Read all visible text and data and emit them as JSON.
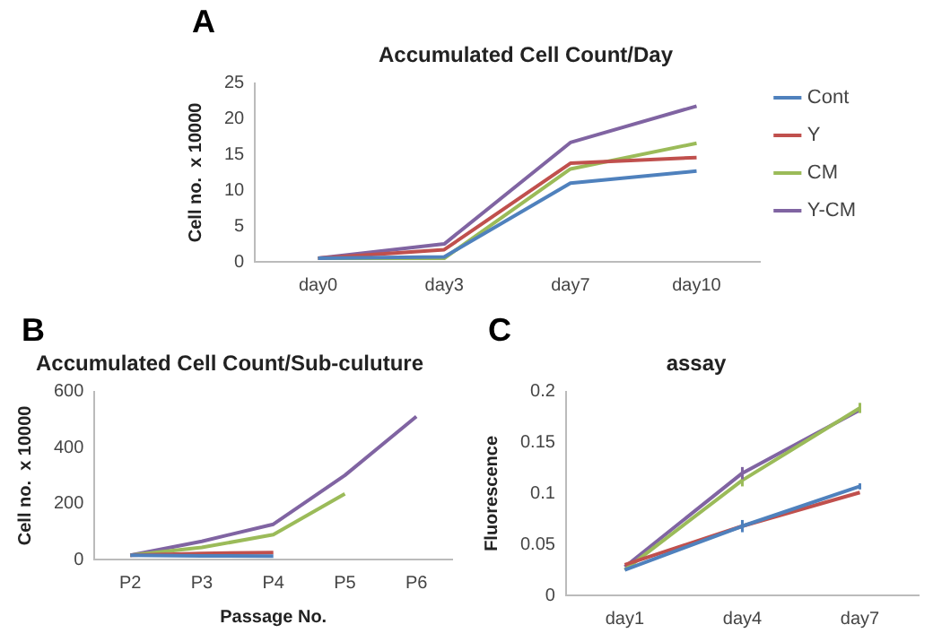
{
  "chart_data": [
    {
      "type": "line",
      "title": "Accumulated Cell Count/Day",
      "ylabel": "Cell no.  x 10000",
      "annotations": [
        "A"
      ],
      "categories": [
        "day0",
        "day3",
        "day7",
        "day10"
      ],
      "ylim": [
        0,
        25
      ],
      "yticks": [
        0,
        5,
        10,
        15,
        20,
        25
      ],
      "grid": false,
      "legend": "right",
      "marker": "none",
      "series": [
        {
          "name": "Cont",
          "color": "#4f81bd",
          "values": [
            0.5,
            0.7,
            11,
            12.7
          ]
        },
        {
          "name": "Y",
          "color": "#c0504d",
          "values": [
            0.5,
            1.7,
            13.8,
            14.6
          ]
        },
        {
          "name": "CM",
          "color": "#9bbb59",
          "values": [
            0.5,
            0.5,
            13,
            16.6
          ]
        },
        {
          "name": "Y-CM",
          "color": "#8064a2",
          "values": [
            0.5,
            2.5,
            16.7,
            21.8
          ]
        }
      ]
    },
    {
      "type": "line",
      "title": "Accumulated Cell Count/Sub-culuture",
      "xlabel": "Passage No.",
      "ylabel": "Cell no.  x 10000",
      "annotations": [
        "B"
      ],
      "categories": [
        "P2",
        "P3",
        "P4",
        "P5",
        "P6"
      ],
      "ylim": [
        0,
        600
      ],
      "yticks": [
        0,
        200,
        400,
        600
      ],
      "grid": false,
      "marker": "none",
      "series": [
        {
          "color": "#4f81bd",
          "values": [
            15,
            13,
            12,
            null,
            null
          ]
        },
        {
          "color": "#c0504d",
          "values": [
            15,
            22,
            25,
            null,
            null
          ]
        },
        {
          "color": "#9bbb59",
          "values": [
            15,
            43,
            89,
            235,
            null
          ]
        },
        {
          "color": "#8064a2",
          "values": [
            15,
            65,
            126,
            301,
            511
          ]
        }
      ]
    },
    {
      "type": "line",
      "title": "assay",
      "ylabel": "Fluorescence",
      "annotations": [
        "C"
      ],
      "categories": [
        "day1",
        "day4",
        "day7"
      ],
      "ylim": [
        0,
        0.2
      ],
      "yticks": [
        0,
        0.05,
        0.1,
        0.15,
        0.2
      ],
      "grid": false,
      "marker": "none",
      "series": [
        {
          "color": "#4f81bd",
          "values": [
            0.025,
            0.068,
            0.107
          ],
          "errors": [
            null,
            0.006,
            0.003
          ]
        },
        {
          "color": "#c0504d",
          "values": [
            0.03,
            0.068,
            0.101
          ]
        },
        {
          "color": "#9bbb59",
          "values": [
            0.025,
            0.113,
            0.184
          ],
          "errors": [
            null,
            0.006,
            0.005
          ]
        },
        {
          "color": "#8064a2",
          "values": [
            0.028,
            0.12,
            0.182
          ],
          "errors": [
            null,
            0.006,
            null
          ]
        }
      ]
    }
  ]
}
